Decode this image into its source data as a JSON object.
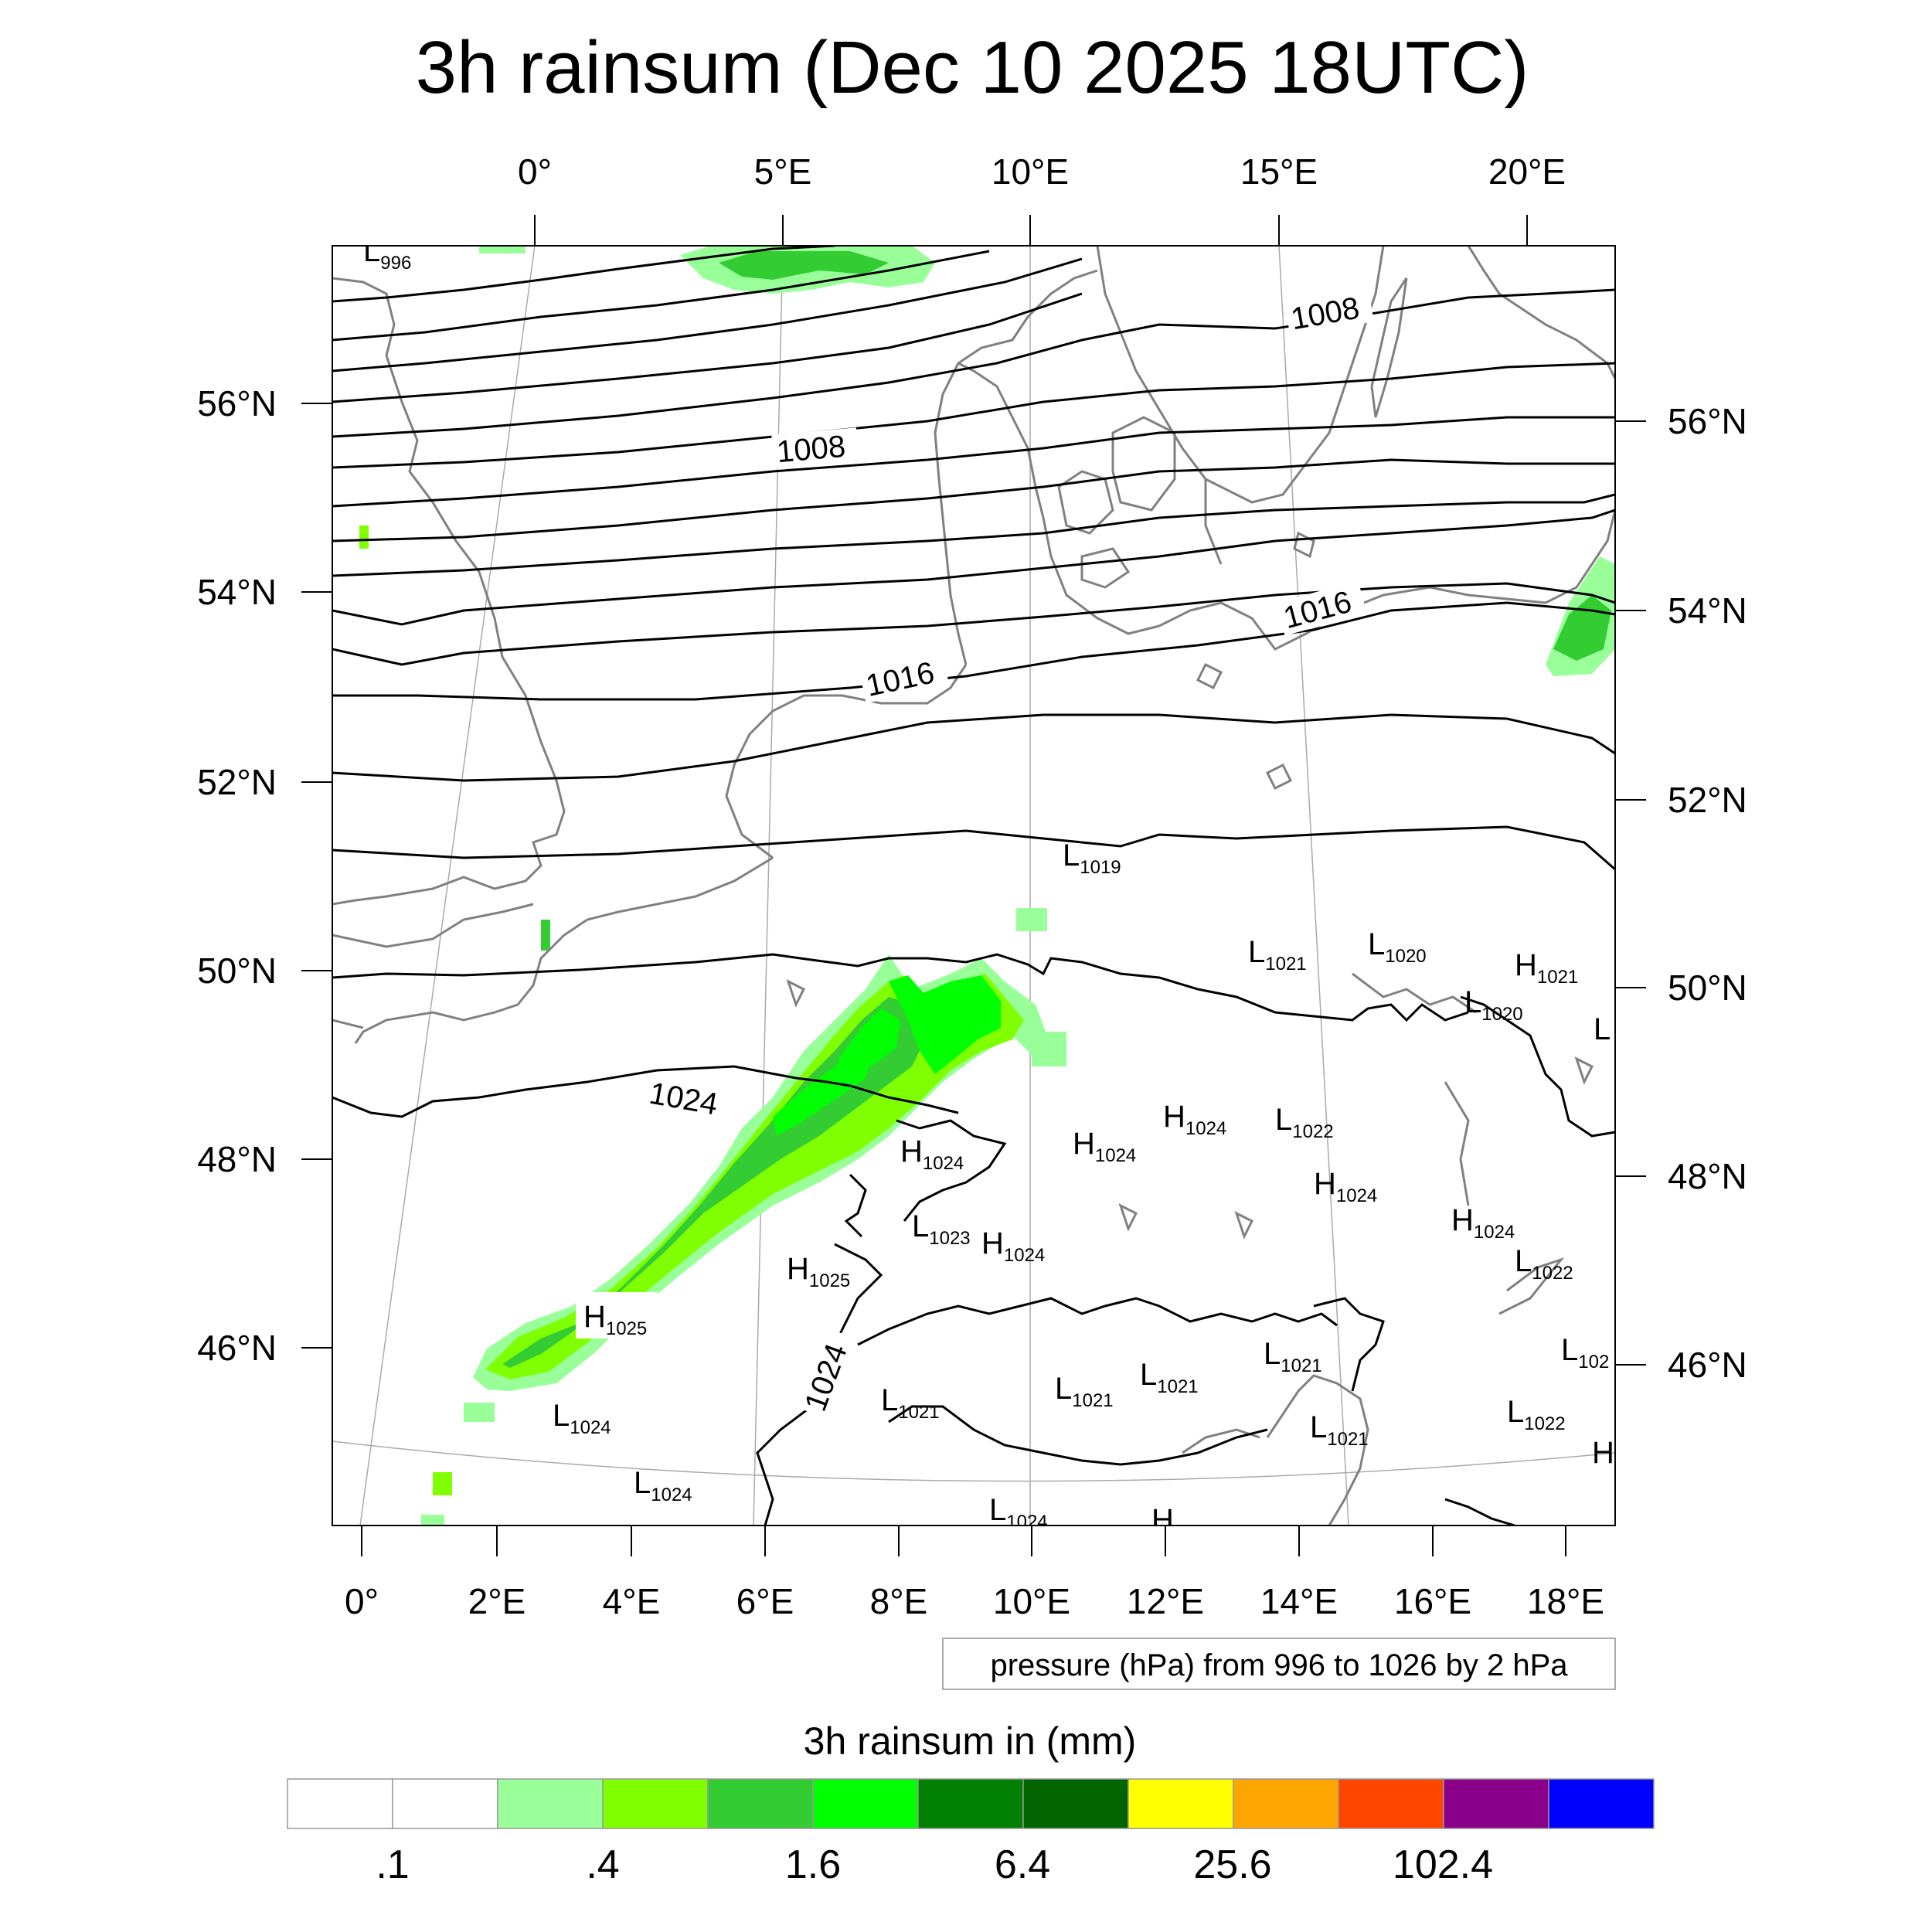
{
  "title": "3h rainsum (Dec 10 2025 18UTC)",
  "top_lon_labels": [
    "0°",
    "5°E",
    "10°E",
    "15°E",
    "20°E"
  ],
  "bottom_lon_labels": [
    "0°",
    "2°E",
    "4°E",
    "6°E",
    "8°E",
    "10°E",
    "12°E",
    "14°E",
    "16°E",
    "18°E"
  ],
  "left_lat_labels": [
    "56°N",
    "54°N",
    "52°N",
    "50°N",
    "48°N",
    "46°N"
  ],
  "right_lat_labels": [
    "56°N",
    "54°N",
    "52°N",
    "50°N",
    "48°N",
    "46°N"
  ],
  "contour_labels": [
    "1008",
    "1008",
    "1016",
    "1016",
    "1024",
    "1024"
  ],
  "pressure_centers": [
    {
      "t": "L",
      "v": "996"
    },
    {
      "t": "L",
      "v": "1019"
    },
    {
      "t": "L",
      "v": "1021"
    },
    {
      "t": "L",
      "v": "1020"
    },
    {
      "t": "H",
      "v": "1021"
    },
    {
      "t": "L",
      "v": "1020"
    },
    {
      "t": "L",
      "v": ""
    },
    {
      "t": "H",
      "v": "1024"
    },
    {
      "t": "H",
      "v": "1024"
    },
    {
      "t": "H",
      "v": "1024"
    },
    {
      "t": "L",
      "v": "1022"
    },
    {
      "t": "H",
      "v": "1024"
    },
    {
      "t": "L",
      "v": "1023"
    },
    {
      "t": "H",
      "v": "1024"
    },
    {
      "t": "H",
      "v": "1024"
    },
    {
      "t": "H",
      "v": "1025"
    },
    {
      "t": "L",
      "v": "1022"
    },
    {
      "t": "H",
      "v": "1025"
    },
    {
      "t": "L",
      "v": "102"
    },
    {
      "t": "L",
      "v": "1024"
    },
    {
      "t": "L",
      "v": "1021"
    },
    {
      "t": "L",
      "v": "1021"
    },
    {
      "t": "L",
      "v": "1021"
    },
    {
      "t": "L",
      "v": "1021"
    },
    {
      "t": "L",
      "v": "1022"
    },
    {
      "t": "L",
      "v": "1021"
    },
    {
      "t": "L",
      "v": "1024"
    },
    {
      "t": "L",
      "v": "1024"
    },
    {
      "t": "H",
      "v": ""
    },
    {
      "t": "H",
      "v": ""
    }
  ],
  "contour_info": "pressure (hPa) from 996 to 1026 by 2 hPa",
  "colorbar": {
    "title": "3h rainsum in (mm)",
    "colors": [
      "#ffffff",
      "#ffffff",
      "#99ff99",
      "#80ff00",
      "#33cc33",
      "#00ff00",
      "#008000",
      "#006400",
      "#ffff00",
      "#ffa500",
      "#ff4500",
      "#8b008b",
      "#0000ff"
    ],
    "labels": [
      ".1",
      ".4",
      "1.6",
      "6.4",
      "25.6",
      "102.4"
    ]
  }
}
